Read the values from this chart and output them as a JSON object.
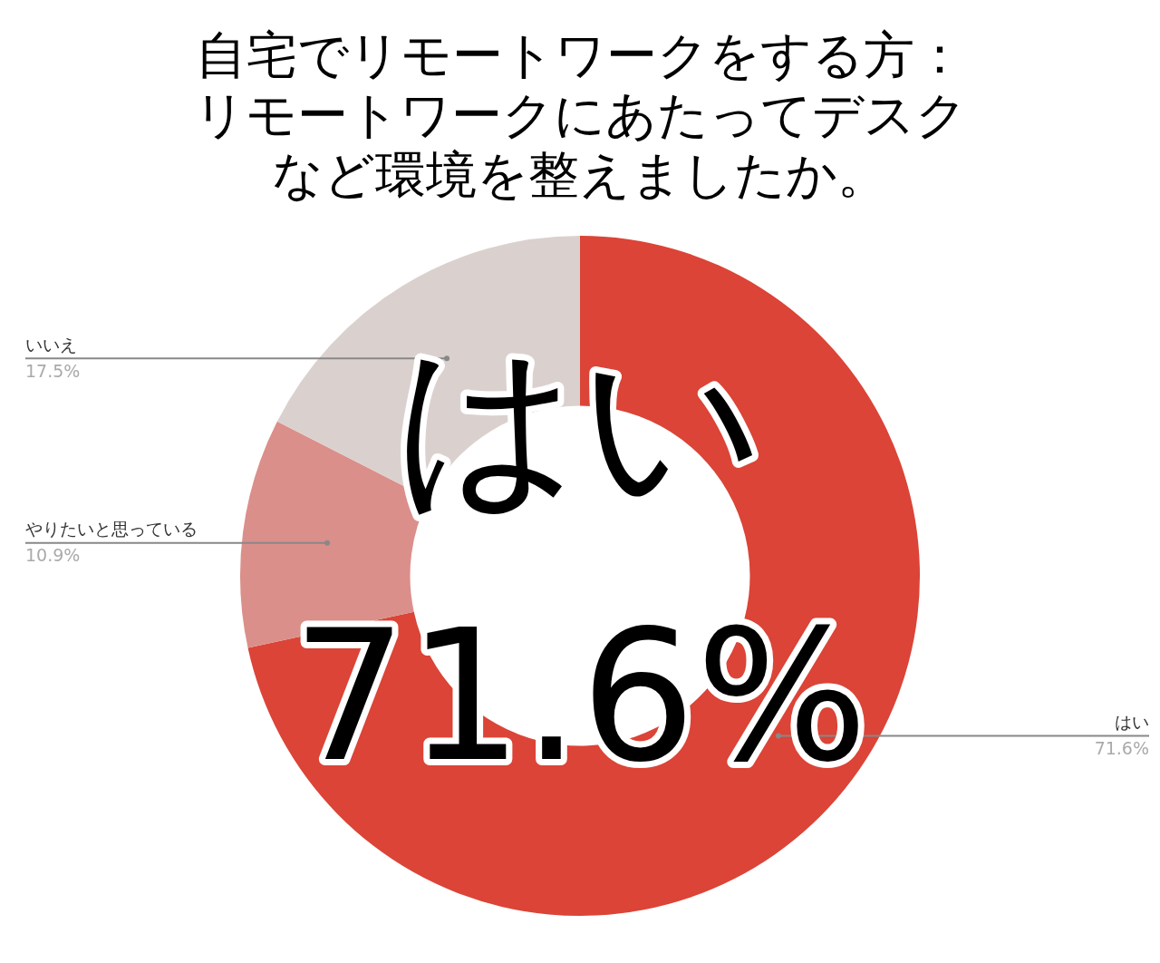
{
  "chart_data": {
    "type": "donut",
    "title": "自宅でリモートワークをする方：リモートワークにあたってデスクなど環境を整えましたか。",
    "categories": [
      "はい",
      "やりたいと思っている",
      "いいえ"
    ],
    "values": [
      71.6,
      10.9,
      17.5
    ],
    "colors": [
      "#db4437",
      "#db8f8a",
      "#dad1cf"
    ],
    "value_labels": [
      "71.6%",
      "10.9%",
      "17.5%"
    ],
    "annotations": [
      "はい",
      "71.6%"
    ],
    "legend": false
  }
}
